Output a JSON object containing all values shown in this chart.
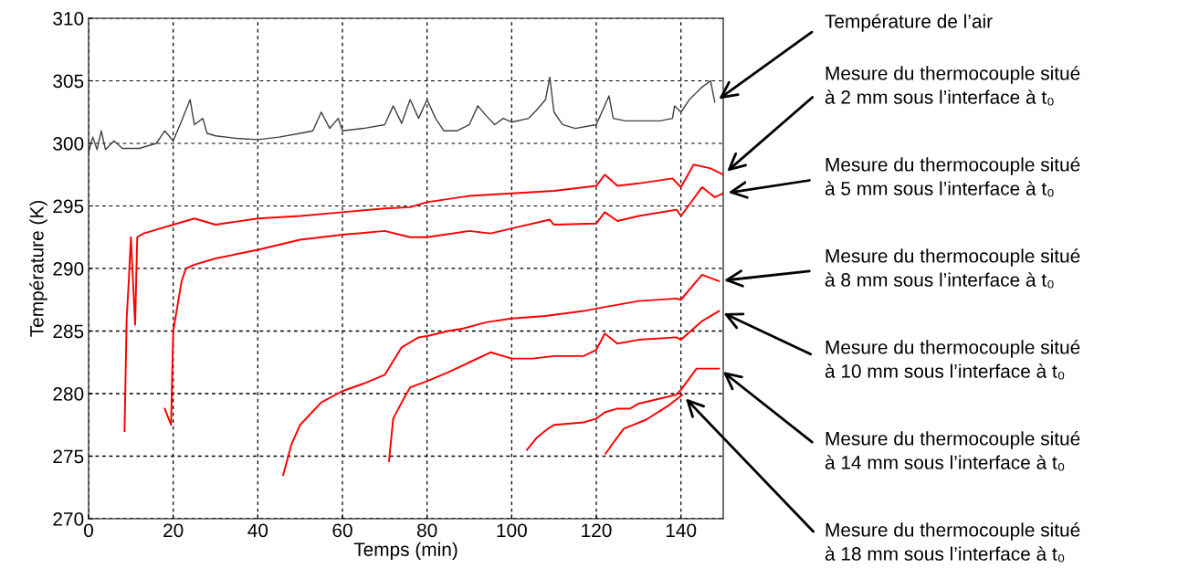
{
  "chart_data": {
    "type": "line",
    "xlabel": "Temps (min)",
    "ylabel": "Température (K)",
    "xlim": [
      0,
      150
    ],
    "xticks": [
      0,
      20,
      40,
      60,
      80,
      100,
      120,
      140
    ],
    "ylim": [
      270,
      310
    ],
    "yticks": [
      270,
      275,
      280,
      285,
      290,
      295,
      300,
      305,
      310
    ],
    "grid": true,
    "line_style": "solid",
    "marker": "none",
    "series": [
      {
        "name": "Température de l’air",
        "color": "#404040",
        "x": [
          0,
          1,
          2,
          3,
          4,
          6,
          8,
          12,
          16,
          18,
          20,
          22,
          24,
          25,
          27,
          28,
          30,
          35,
          40,
          45,
          50,
          53,
          55,
          57,
          59,
          60,
          65,
          70,
          72,
          74,
          76,
          78,
          80,
          82,
          84,
          87,
          90,
          92,
          94,
          96,
          98,
          100,
          104,
          106,
          108,
          109,
          110,
          112,
          115,
          120,
          123,
          124,
          127,
          135,
          138,
          138.5,
          140,
          142,
          145,
          147,
          148
        ],
        "values": [
          299.3,
          300.5,
          299.5,
          301,
          299.5,
          300.2,
          299.6,
          299.6,
          300.0,
          301.0,
          300.2,
          301.8,
          303.5,
          301.5,
          302.0,
          300.8,
          300.6,
          300.4,
          300.3,
          300.5,
          300.8,
          301.0,
          302.5,
          301.2,
          302.0,
          301.0,
          301.2,
          301.5,
          303.0,
          301.6,
          303.5,
          302.0,
          303.5,
          302.0,
          301.0,
          301.0,
          301.5,
          303.0,
          302.2,
          301.5,
          302.0,
          301.7,
          302.0,
          302.7,
          303.5,
          305.3,
          302.5,
          301.5,
          301.2,
          301.5,
          303.8,
          302.0,
          301.8,
          301.8,
          302.0,
          303.0,
          302.5,
          303.5,
          304.5,
          305.0,
          303.3
        ]
      },
      {
        "name": "Mesure du thermocouple situé\nà 2 mm sous l’interface à t₀",
        "color": "#ff0000",
        "x": [
          8.5,
          9,
          9.5,
          10,
          11,
          11.5,
          13,
          15,
          20,
          25,
          30,
          40,
          50,
          60,
          70,
          76,
          80,
          90,
          100,
          110,
          120,
          122,
          125,
          130,
          138,
          140,
          143,
          147,
          150
        ],
        "values": [
          277,
          286,
          289,
          292.5,
          285.5,
          292.5,
          292.8,
          293,
          293.5,
          294,
          293.5,
          294,
          294.2,
          294.5,
          294.8,
          294.9,
          295.3,
          295.8,
          296,
          296.2,
          296.6,
          297.5,
          296.6,
          296.8,
          297.2,
          296.5,
          298.3,
          298,
          297.5
        ]
      },
      {
        "name": "Mesure du thermocouple situé\nà 5 mm sous l’interface à t₀",
        "color": "#ff0000",
        "x": [
          18,
          19.5,
          20,
          21,
          22,
          23,
          25,
          30,
          40,
          50,
          60,
          70,
          76,
          80,
          90,
          95,
          100,
          109,
          110,
          120,
          122,
          125,
          130,
          139,
          140,
          145,
          148,
          150
        ],
        "values": [
          278.8,
          277.5,
          285,
          287,
          289,
          290,
          290.3,
          290.8,
          291.5,
          292.3,
          292.7,
          293,
          292.5,
          292.5,
          293,
          292.8,
          293.2,
          293.9,
          293.5,
          293.6,
          294.5,
          293.8,
          294.2,
          294.7,
          294.2,
          296.5,
          295.7,
          296
        ]
      },
      {
        "name": "Mesure du thermocouple situé\nà 8 mm sous l’interface à t₀",
        "color": "#ff0000",
        "x": [
          46,
          48,
          50,
          55,
          60,
          65,
          70,
          74,
          78,
          80,
          85,
          88.5,
          94,
          100,
          108,
          110,
          117,
          120,
          130,
          139,
          140,
          145,
          149
        ],
        "values": [
          273.5,
          276,
          277.5,
          279.3,
          280.2,
          280.8,
          281.5,
          283.7,
          284.5,
          284.6,
          285,
          285.2,
          285.7,
          286,
          286.2,
          286.3,
          286.6,
          286.8,
          287.4,
          287.6,
          287.5,
          289.5,
          289
        ]
      },
      {
        "name": "Mesure du thermocouple situé\nà 10 mm sous l’interface à t₀",
        "color": "#ff0000",
        "x": [
          71,
          72,
          74,
          76,
          80,
          85,
          90,
          95,
          100,
          105,
          110,
          117,
          120,
          122,
          125,
          130,
          139,
          140,
          145,
          149
        ],
        "values": [
          274.6,
          278,
          279.3,
          280.5,
          281,
          281.7,
          282.5,
          283.3,
          282.8,
          282.8,
          283,
          283,
          283.5,
          284.8,
          284,
          284.3,
          284.5,
          284.3,
          285.8,
          286.6
        ]
      },
      {
        "name": "Mesure du thermocouple situé\nà 14 mm sous l’interface à t₀",
        "color": "#ff0000",
        "x": [
          103.6,
          106,
          108.6,
          110,
          117,
          120,
          122,
          125,
          128,
          130,
          135,
          138.8,
          140,
          143.7,
          145,
          149
        ],
        "values": [
          275.5,
          276.5,
          277.2,
          277.5,
          277.7,
          278,
          278.5,
          278.8,
          278.8,
          279.2,
          279.6,
          279.9,
          280.3,
          282,
          282,
          282
        ]
      },
      {
        "name": "Mesure du thermocouple situé\nà 18 mm sous l’interface à t₀",
        "color": "#ff0000",
        "x": [
          122.2,
          124.3,
          126.5,
          131.7,
          137.3,
          140.3
        ],
        "values": [
          275.2,
          276.2,
          277.2,
          277.9,
          279.1,
          279.9
        ]
      }
    ]
  }
}
